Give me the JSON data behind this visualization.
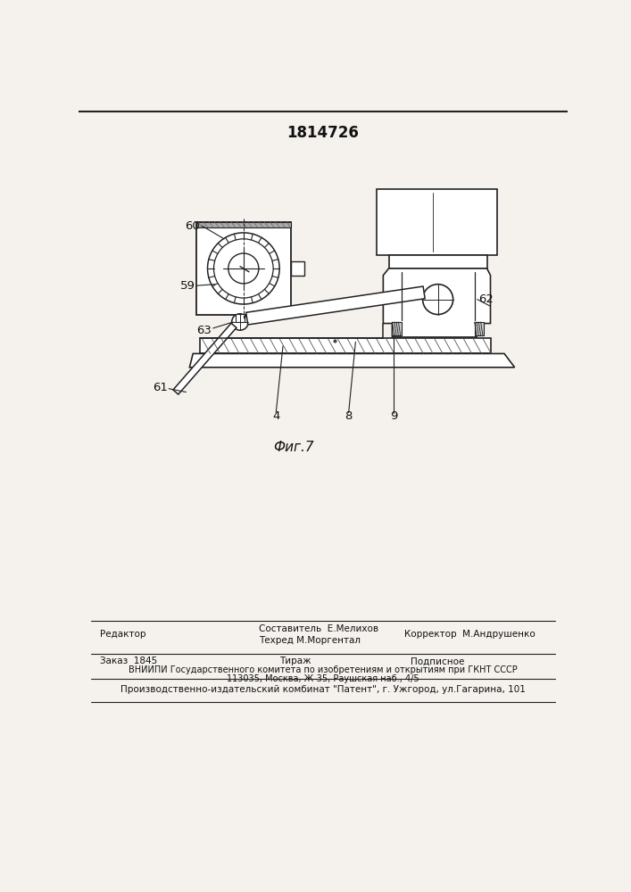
{
  "patent_number": "1814726",
  "figure_caption": "Фиг.7",
  "footer_line1_left": "Редактор",
  "footer_line1_center1": "Составитель  Е.Мелихов",
  "footer_line1_center2": "Техред М.Моргентал",
  "footer_line1_right": "Корректор  М.Андрушенко",
  "footer_line2_left": "Заказ  1845",
  "footer_line2_center": "Тираж",
  "footer_line2_right": "Подписное",
  "footer_line3": "ВНИИПИ Государственного комитета по изобретениям и открытиям при ГКНТ СССР",
  "footer_line4": "113035, Москва, Ж-35, Раушская наб., 4/5",
  "footer_line5": "Производственно-издательский комбинат \"Патент\", г. Ужгород, ул.Гагарина, 101",
  "bg_color": "#f5f2ee",
  "line_color": "#222222",
  "text_color": "#111111"
}
